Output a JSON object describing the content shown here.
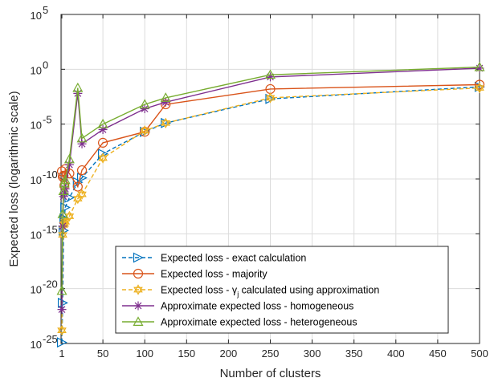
{
  "chart_data": {
    "type": "line",
    "xlabel": "Number of clusters",
    "ylabel": "Expected loss (logarithmic scale)",
    "xlim": [
      0,
      500
    ],
    "ylim_exponent": [
      -25,
      5
    ],
    "y_scale": "log",
    "grid": true,
    "legend_position": "bottom-center",
    "x_ticks": [
      1,
      50,
      100,
      150,
      200,
      250,
      300,
      350,
      400,
      450,
      500
    ],
    "x_tick_labels": [
      "1",
      "50",
      "100",
      "150",
      "200",
      "250",
      "300",
      "350",
      "400",
      "450",
      "500"
    ],
    "y_tick_exponents": [
      -25,
      -20,
      -15,
      -10,
      -5,
      0,
      5
    ],
    "y_tick_labels": [
      {
        "base": "10",
        "exp": "-25"
      },
      {
        "base": "10",
        "exp": "-20"
      },
      {
        "base": "10",
        "exp": "-15"
      },
      {
        "base": "10",
        "exp": "-10"
      },
      {
        "base": "10",
        "exp": "-5"
      },
      {
        "base": "10",
        "exp": "0"
      },
      {
        "base": "10",
        "exp": "5"
      }
    ],
    "series": [
      {
        "name": "Expected loss - exact calculation",
        "color": "#0072BD",
        "line": "dashed",
        "marker": "triangle-right",
        "x": [
          1,
          2,
          3,
          4,
          5,
          10,
          20,
          25,
          50,
          100,
          125,
          250,
          500
        ],
        "log10_y": [
          -24.9,
          -21.3,
          -14.7,
          -13.6,
          -12.6,
          -11.7,
          -10.3,
          -9.9,
          -7.7,
          -5.7,
          -4.9,
          -2.7,
          -1.6
        ]
      },
      {
        "name": "Expected loss - majority",
        "color": "#D95319",
        "line": "solid",
        "marker": "circle",
        "x": [
          1,
          2,
          3,
          4,
          5,
          10,
          20,
          25,
          50,
          100,
          125,
          250,
          500
        ],
        "log10_y": [
          -9.3,
          -9.8,
          -9.7,
          -10.6,
          -9.1,
          -9.5,
          -10.7,
          -9.2,
          -6.7,
          -5.7,
          -3.2,
          -1.8,
          -1.4
        ]
      },
      {
        "name": "Expected loss - γ_j calculated using approximation",
        "color": "#EDB120",
        "line": "dashed",
        "marker": "hexagram",
        "x": [
          1,
          2,
          3,
          4,
          5,
          10,
          20,
          25,
          50,
          100,
          125,
          250,
          500
        ],
        "log10_y": [
          -23.8,
          -15.1,
          -14.2,
          -14.1,
          -13.9,
          -13.4,
          -11.8,
          -11.4,
          -8.1,
          -5.6,
          -4.9,
          -2.6,
          -1.7
        ]
      },
      {
        "name": "Approximate expected loss - homogeneous",
        "color": "#7E2F8E",
        "line": "solid",
        "marker": "asterisk",
        "x": [
          1,
          2,
          3,
          4,
          5,
          10,
          20,
          25,
          50,
          100,
          125,
          250,
          500
        ],
        "log10_y": [
          -21.9,
          -14.3,
          -11.6,
          -11.3,
          -10.9,
          -8.7,
          -2.2,
          -6.8,
          -5.5,
          -3.6,
          -3.0,
          -0.7,
          0.1
        ]
      },
      {
        "name": "Approximate expected loss - heterogeneous",
        "color": "#77AC30",
        "line": "solid",
        "marker": "triangle-up",
        "x": [
          1,
          2,
          3,
          4,
          5,
          10,
          20,
          25,
          50,
          100,
          125,
          250,
          500
        ],
        "log10_y": [
          -20.2,
          -13.2,
          -11.1,
          -10.4,
          -10.1,
          -8.2,
          -1.7,
          -6.3,
          -5.0,
          -3.2,
          -2.6,
          -0.5,
          0.2
        ]
      }
    ]
  }
}
